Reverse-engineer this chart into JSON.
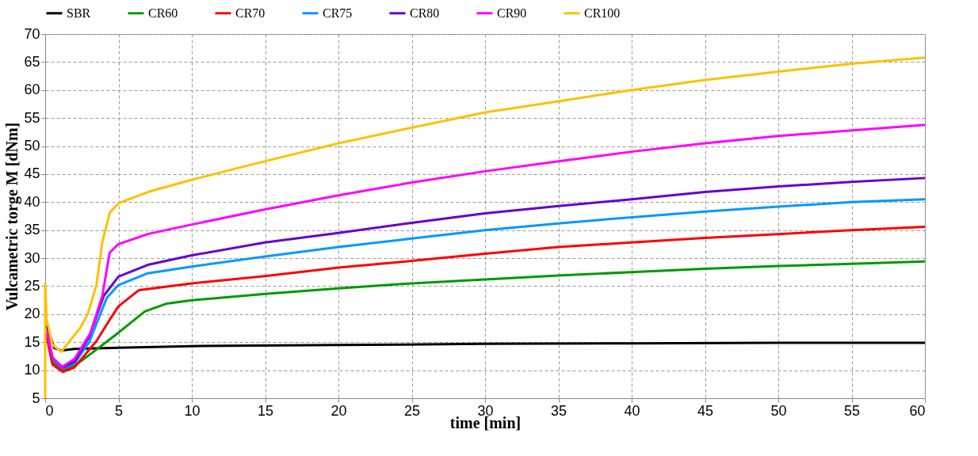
{
  "chart_data": {
    "type": "line",
    "xlabel": "time [min]",
    "ylabel": "Vulcametric torge M [dNm]",
    "xlim": [
      0,
      60
    ],
    "ylim": [
      5,
      70
    ],
    "xticks": [
      0,
      5,
      10,
      15,
      20,
      25,
      30,
      35,
      40,
      45,
      50,
      55,
      60
    ],
    "yticks": [
      5,
      10,
      15,
      20,
      25,
      30,
      35,
      40,
      45,
      50,
      55,
      60,
      65,
      70
    ],
    "grid": true,
    "legend": "top",
    "line_style": "solid",
    "marker": "none",
    "series": [
      {
        "name": "SBR",
        "color": "#000000",
        "x": [
          0.1,
          0.6,
          1.1,
          2,
          5,
          10,
          20,
          30,
          40,
          50,
          60
        ],
        "values": [
          18,
          14,
          13.5,
          13.8,
          14,
          14.3,
          14.5,
          14.7,
          14.8,
          14.9,
          14.9
        ]
      },
      {
        "name": "CR60",
        "color": "#009900",
        "x": [
          0.1,
          0.5,
          1.2,
          2,
          3.1,
          5,
          6.8,
          8.3,
          10,
          15,
          20,
          25,
          30,
          35,
          40,
          45,
          50,
          55,
          60
        ],
        "values": [
          16.5,
          11.5,
          10,
          10.8,
          12.9,
          16.7,
          20.5,
          21.9,
          22.5,
          23.6,
          24.6,
          25.5,
          26.2,
          26.9,
          27.5,
          28.1,
          28.6,
          29,
          29.4
        ]
      },
      {
        "name": "CR70",
        "color": "#ff0000",
        "x": [
          0.1,
          0.5,
          1.2,
          2,
          3.5,
          4.4,
          5,
          6.4,
          10,
          15,
          20,
          25,
          30,
          35,
          40,
          45,
          50,
          55,
          60
        ],
        "values": [
          16,
          11,
          9.7,
          10.5,
          15.2,
          19,
          21.4,
          24.3,
          25.5,
          26.8,
          28.3,
          29.5,
          30.8,
          32,
          32.8,
          33.6,
          34.3,
          35,
          35.6
        ]
      },
      {
        "name": "CR75",
        "color": "#0099ff",
        "x": [
          0.5,
          1.2,
          2,
          3,
          4.2,
          5,
          7,
          10,
          15,
          20,
          25,
          30,
          35,
          40,
          45,
          50,
          55,
          60
        ],
        "values": [
          12,
          10.3,
          11.2,
          15,
          22.9,
          25.2,
          27.3,
          28.5,
          30.3,
          32,
          33.5,
          35,
          36.2,
          37.3,
          38.3,
          39.2,
          40,
          40.5
        ]
      },
      {
        "name": "CR80",
        "color": "#6600cc",
        "x": [
          0.1,
          0.5,
          1.2,
          2,
          3,
          4,
          5,
          7,
          10,
          15,
          20,
          25,
          30,
          35,
          40,
          45,
          50,
          55,
          60
        ],
        "values": [
          17,
          12.2,
          10.5,
          11.5,
          16,
          23.3,
          26.7,
          28.8,
          30.5,
          32.8,
          34.5,
          36.3,
          38,
          39.3,
          40.5,
          41.8,
          42.8,
          43.6,
          44.3
        ]
      },
      {
        "name": "CR90",
        "color": "#ff00ff",
        "x": [
          0.1,
          0.5,
          1.1,
          2,
          3.1,
          3.9,
          4.4,
          5,
          7,
          10,
          15,
          20,
          25,
          30,
          35,
          40,
          45,
          50,
          55,
          60
        ],
        "values": [
          17,
          12.3,
          10.5,
          12,
          16.7,
          23.3,
          31,
          32.5,
          34.3,
          36,
          38.7,
          41.2,
          43.5,
          45.5,
          47.3,
          49,
          50.5,
          51.8,
          52.8,
          53.8
        ]
      },
      {
        "name": "CR100",
        "color": "#ffc000",
        "x": [
          0,
          0,
          0.1,
          0.5,
          1.1,
          2.4,
          2.9,
          3.5,
          3.9,
          4.4,
          5,
          7,
          10,
          15,
          20,
          25,
          30,
          35,
          40,
          45,
          50,
          55,
          60
        ],
        "values": [
          5,
          25.5,
          19,
          14.5,
          13.3,
          17.6,
          20,
          25.2,
          32.9,
          38.1,
          39.8,
          41.8,
          44,
          47.3,
          50.5,
          53.3,
          56,
          58,
          60,
          61.8,
          63.3,
          64.7,
          65.8
        ]
      }
    ]
  }
}
